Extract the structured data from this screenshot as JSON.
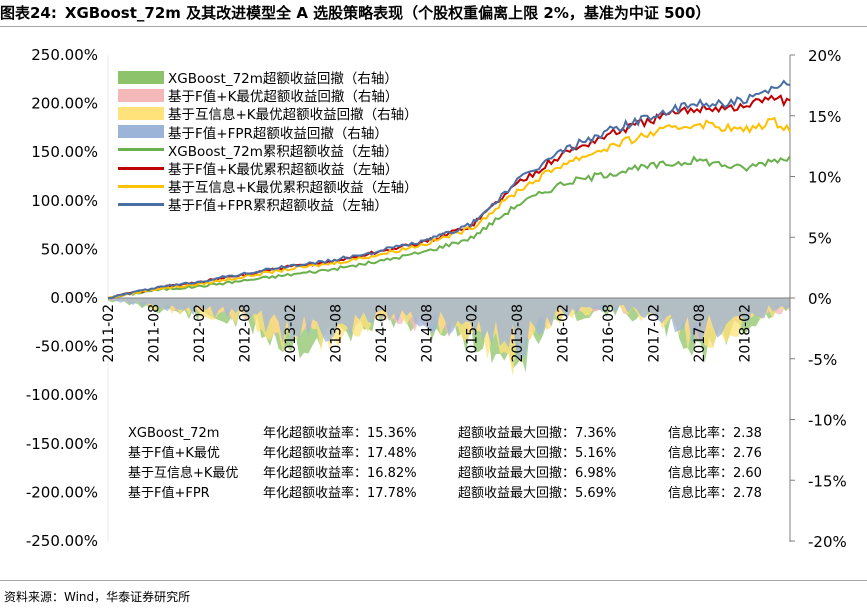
{
  "header": {
    "figure_no": "图表24:",
    "title": "XGBoost_72m 及其改进模型全 A 选股策略表现（个股权重偏离上限 2%，基准为中证 500）"
  },
  "source": "资料来源：Wind，华泰证券研究所",
  "colors": {
    "green_bar": "#8dc46b",
    "pink_bar": "#f4b8b8",
    "yellow_bar": "#ffe27a",
    "blue_bar": "#9cb4d8",
    "green_line": "#6ab04c",
    "red_line": "#c00000",
    "yellow_line": "#ffc000",
    "blue_line": "#4a6fa5"
  },
  "chart_data": {
    "type": "line",
    "x_tick_labels": [
      "2011-02",
      "2011-08",
      "2012-02",
      "2012-08",
      "2013-02",
      "2013-08",
      "2014-02",
      "2014-08",
      "2015-02",
      "2015-08",
      "2016-02",
      "2016-08",
      "2017-02",
      "2017-08",
      "2018-02"
    ],
    "x_range": [
      "2011-02",
      "2018-08"
    ],
    "left_axis": {
      "tick_labels": [
        "250.00%",
        "200.00%",
        "150.00%",
        "100.00%",
        "50.00%",
        "0.00%",
        "-50.00%",
        "-100.00%",
        "-150.00%",
        "-200.00%",
        "-250.00%"
      ],
      "ylim": [
        -250,
        250
      ]
    },
    "right_axis": {
      "tick_labels": [
        "20%",
        "15%",
        "10%",
        "5%",
        "0%",
        "-5%",
        "-10%",
        "-15%",
        "-20%"
      ],
      "ylim": [
        -20,
        20
      ]
    },
    "legend": [
      {
        "label": "XGBoost_72m超额收益回撤（右轴）",
        "kind": "area",
        "color": "#8dc46b"
      },
      {
        "label": "基于F值+K最优超额收益回撤（右轴）",
        "kind": "area",
        "color": "#f4b8b8"
      },
      {
        "label": "基于互信息+K最优超额收益回撤（右轴）",
        "kind": "area",
        "color": "#ffe27a"
      },
      {
        "label": "基于F值+FPR超额收益回撤（右轴）",
        "kind": "area",
        "color": "#9cb4d8"
      },
      {
        "label": "XGBoost_72m累积超额收益（左轴）",
        "kind": "line",
        "color": "#6ab04c"
      },
      {
        "label": "基于F值+K最优累积超额收益（左轴）",
        "kind": "line",
        "color": "#c00000"
      },
      {
        "label": "基于互信息+K最优累积超额收益（左轴）",
        "kind": "line",
        "color": "#ffc000"
      },
      {
        "label": "基于F值+FPR累积超额收益（左轴）",
        "kind": "line",
        "color": "#4a6fa5"
      }
    ],
    "series": [
      {
        "name": "XGBoost_72m累积超额收益",
        "axis": "left",
        "color": "#6ab04c",
        "x": [
          0,
          0.5,
          1,
          1.5,
          2,
          2.5,
          3,
          3.5,
          4,
          4.5,
          5,
          5.5,
          6,
          6.5,
          7,
          7.3,
          7.5
        ],
        "values": [
          0,
          8,
          12,
          18,
          24,
          30,
          38,
          48,
          62,
          96,
          118,
          128,
          136,
          142,
          133,
          142,
          145
        ]
      },
      {
        "name": "基于F值+K最优累积超额收益",
        "axis": "left",
        "color": "#c00000",
        "x": [
          0,
          0.5,
          1,
          1.5,
          2,
          2.5,
          3,
          3.5,
          4,
          4.5,
          5,
          5.5,
          6,
          6.5,
          7,
          7.3,
          7.5
        ],
        "values": [
          0,
          10,
          16,
          24,
          32,
          38,
          48,
          58,
          75,
          118,
          148,
          168,
          184,
          196,
          196,
          208,
          200
        ]
      },
      {
        "name": "基于互信息+K最优累积超额收益",
        "axis": "left",
        "color": "#ffc000",
        "x": [
          0,
          0.5,
          1,
          1.5,
          2,
          2.5,
          3,
          3.5,
          4,
          4.5,
          5,
          5.5,
          6,
          6.5,
          7,
          7.3,
          7.5
        ],
        "values": [
          0,
          9,
          14,
          22,
          30,
          36,
          45,
          56,
          72,
          110,
          138,
          155,
          170,
          180,
          172,
          182,
          175
        ]
      },
      {
        "name": "基于F值+FPR累积超额收益",
        "axis": "left",
        "color": "#4a6fa5",
        "x": [
          0,
          0.5,
          1,
          1.5,
          2,
          2.5,
          3,
          3.5,
          4,
          4.5,
          5,
          5.5,
          6,
          6.5,
          7,
          7.3,
          7.5
        ],
        "values": [
          0,
          10,
          17,
          25,
          33,
          39,
          49,
          59,
          76,
          120,
          152,
          172,
          188,
          200,
          202,
          213,
          222
        ]
      },
      {
        "name": "XGBoost_72m超额收益回撤",
        "axis": "right",
        "color": "#8dc46b",
        "x": [
          0,
          0.5,
          1,
          1.5,
          2,
          2.5,
          3,
          3.5,
          4,
          4.5,
          5,
          5.5,
          6,
          6.5,
          7,
          7.5
        ],
        "values": [
          -0.3,
          -1.2,
          -2.2,
          -2.8,
          -5.6,
          -4.6,
          -2.5,
          -3.4,
          -4.8,
          -7.4,
          -2.1,
          -1.6,
          -2.4,
          -6.1,
          -3.2,
          -1.1
        ]
      },
      {
        "name": "基于F值+K最优超额收益回撤",
        "axis": "right",
        "color": "#f4b8b8",
        "x": [
          0,
          0.5,
          1,
          1.5,
          2,
          2.5,
          3,
          3.5,
          4,
          4.5,
          5,
          5.5,
          6,
          6.5,
          7,
          7.5
        ],
        "values": [
          -0.2,
          -0.8,
          -1.6,
          -2.0,
          -4.0,
          -3.6,
          -2.0,
          -3.2,
          -3.5,
          -5.1,
          -1.6,
          -1.2,
          -1.8,
          -4.0,
          -2.4,
          -1.3
        ]
      },
      {
        "name": "基于互信息+K最优超额收益回撤",
        "axis": "right",
        "color": "#ffe27a",
        "x": [
          0,
          0.5,
          1,
          1.5,
          2,
          2.5,
          3,
          3.5,
          4,
          4.5,
          5,
          5.5,
          6,
          6.5,
          7,
          7.5
        ],
        "values": [
          -0.2,
          -1.0,
          -1.8,
          -2.4,
          -5.2,
          -4.2,
          -2.3,
          -3.0,
          -4.1,
          -6.9,
          -1.9,
          -1.4,
          -2.1,
          -5.2,
          -2.9,
          -1.0
        ]
      },
      {
        "name": "基于F值+FPR超额收益回撤",
        "axis": "right",
        "color": "#9cb4d8",
        "x": [
          0,
          0.5,
          1,
          1.5,
          2,
          2.5,
          3,
          3.5,
          4,
          4.5,
          5,
          5.5,
          6,
          6.5,
          7,
          7.5
        ],
        "values": [
          -0.2,
          -0.9,
          -1.5,
          -2.1,
          -4.2,
          -3.8,
          -2.1,
          -2.9,
          -3.6,
          -5.6,
          -1.7,
          -1.2,
          -1.9,
          -4.2,
          -2.5,
          -0.9
        ]
      }
    ],
    "stats_table": {
      "rows": [
        {
          "name": "XGBoost_72m",
          "annual": "年化超额收益率：15.36%",
          "mdd": "超额收益最大回撤：7.36%",
          "ir": "信息比率：2.38"
        },
        {
          "name": "基于F值+K最优",
          "annual": "年化超额收益率：17.48%",
          "mdd": "超额收益最大回撤：5.16%",
          "ir": "信息比率：2.76"
        },
        {
          "name": "基于互信息+K最优",
          "annual": "年化超额收益率：16.82%",
          "mdd": "超额收益最大回撤：6.98%",
          "ir": "信息比率：2.60"
        },
        {
          "name": "基于F值+FPR",
          "annual": "年化超额收益率：17.78%",
          "mdd": "超额收益最大回撤：5.69%",
          "ir": "信息比率：2.78"
        }
      ]
    }
  }
}
